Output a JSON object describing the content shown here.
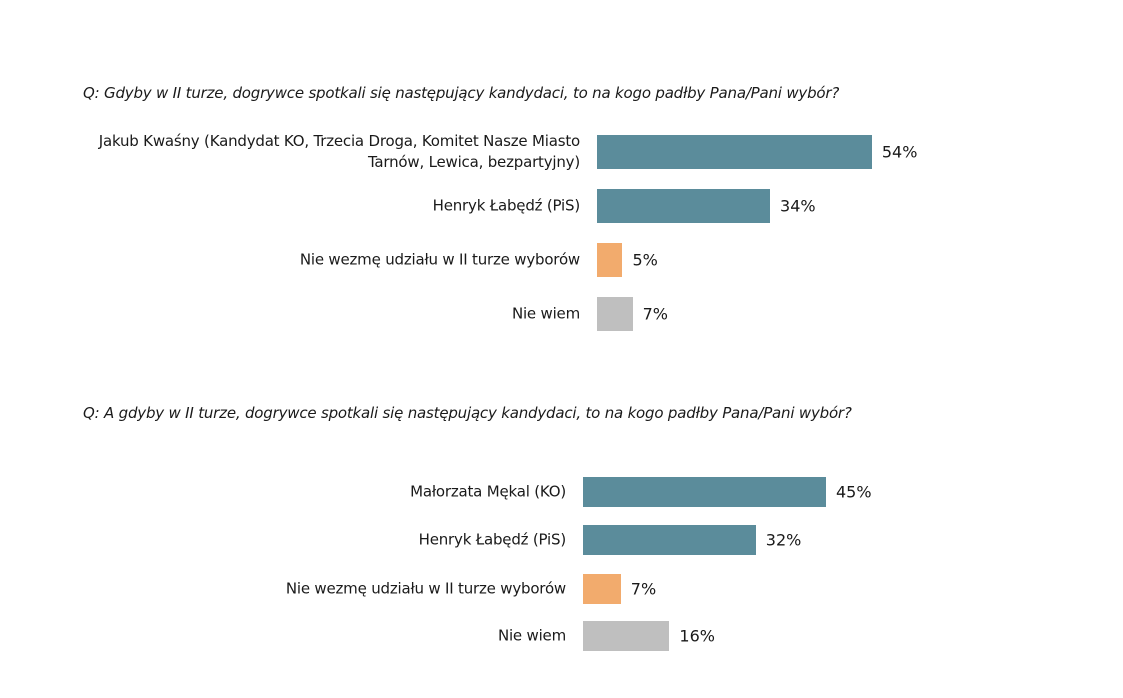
{
  "colors": {
    "candidate": "#5b8c9b",
    "abstain": "#f2ab6d",
    "unknown": "#bfbfbf"
  },
  "chart_data": [
    {
      "type": "bar",
      "orientation": "horizontal",
      "title": "Q: Gdyby w II turze, dogrywce spotkali się następujący kandydaci, to na kogo padłby Pana/Pani wybór?",
      "categories": [
        "Jakub Kwaśny (Kandydat KO, Trzecia Droga, Komitet Nasze Miasto Tarnów, Lewica, bezpartyjny)",
        "Henryk Łabędź (PiS)",
        "Nie wezmę udziału w II turze wyborów",
        "Nie wiem"
      ],
      "values": [
        54,
        34,
        5,
        7
      ],
      "value_labels": [
        "54%",
        "34%",
        "5%",
        "7%"
      ],
      "kinds": [
        "candidate",
        "candidate",
        "abstain",
        "unknown"
      ],
      "xlim": [
        0,
        100
      ]
    },
    {
      "type": "bar",
      "orientation": "horizontal",
      "title": "Q:  A gdyby w II turze, dogrywce spotkali się następujący kandydaci, to na kogo padłby Pana/Pani wybór?",
      "categories": [
        "Małorzata Mękal (KO)",
        "Henryk Łabędź (PiS)",
        "Nie wezmę udziału w II turze wyborów",
        "Nie wiem"
      ],
      "values": [
        45,
        32,
        7,
        16
      ],
      "value_labels": [
        "45%",
        "32%",
        "7%",
        "16%"
      ],
      "kinds": [
        "candidate",
        "candidate",
        "abstain",
        "unknown"
      ],
      "xlim": [
        0,
        100
      ]
    }
  ]
}
